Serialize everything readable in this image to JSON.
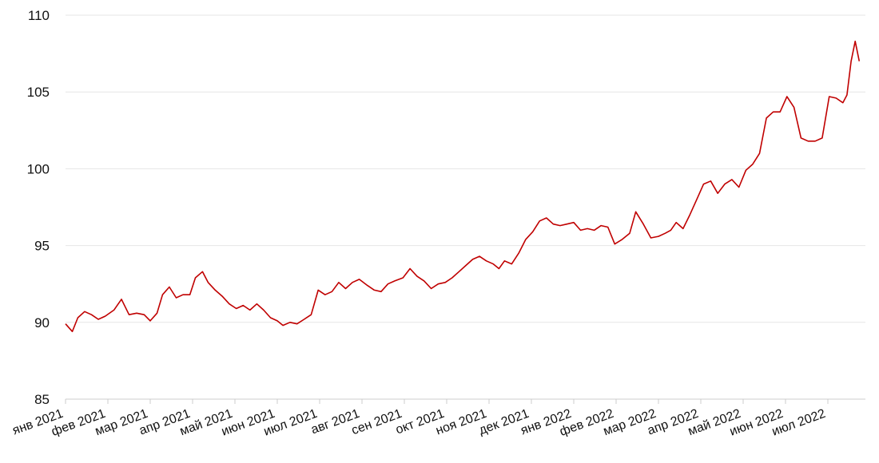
{
  "chart_data": {
    "type": "line",
    "title": "",
    "xlabel": "",
    "ylabel": "",
    "ylim": [
      85,
      110
    ],
    "y_ticks": [
      "85",
      "90",
      "95",
      "100",
      "105",
      "110"
    ],
    "x_ticks": [
      "янв 2021",
      "фев 2021",
      "мар 2021",
      "апр 2021",
      "май 2021",
      "июн 2021",
      "июл 2021",
      "авг 2021",
      "сен 2021",
      "окт 2021",
      "ноя 2021",
      "дек 2021",
      "янв 2022",
      "фев 2022",
      "мар 2022",
      "апр 2022",
      "май 2022",
      "июн 2022",
      "июл 2022"
    ],
    "grid": true,
    "line_color": "#c00000",
    "series": [
      {
        "x": [
          "2021-01-01",
          "2021-01-06",
          "2021-01-10",
          "2021-01-15",
          "2021-01-20",
          "2021-01-25",
          "2021-01-30",
          "2021-02-05",
          "2021-02-10",
          "2021-02-15",
          "2021-02-20",
          "2021-02-25",
          "2021-03-01",
          "2021-03-06",
          "2021-03-10",
          "2021-03-15",
          "2021-03-20",
          "2021-03-25",
          "2021-03-30",
          "2021-04-03",
          "2021-04-08",
          "2021-04-12",
          "2021-04-17",
          "2021-04-22",
          "2021-04-27",
          "2021-05-02",
          "2021-05-07",
          "2021-05-12",
          "2021-05-17",
          "2021-05-22",
          "2021-05-27",
          "2021-06-01",
          "2021-06-05",
          "2021-06-10",
          "2021-06-15",
          "2021-06-20",
          "2021-06-25",
          "2021-06-30",
          "2021-07-05",
          "2021-07-10",
          "2021-07-15",
          "2021-07-20",
          "2021-07-25",
          "2021-07-30",
          "2021-08-05",
          "2021-08-10",
          "2021-08-15",
          "2021-08-20",
          "2021-08-25",
          "2021-08-31",
          "2021-09-05",
          "2021-09-10",
          "2021-09-15",
          "2021-09-20",
          "2021-09-25",
          "2021-09-30",
          "2021-10-05",
          "2021-10-10",
          "2021-10-15",
          "2021-10-20",
          "2021-10-25",
          "2021-10-30",
          "2021-11-04",
          "2021-11-08",
          "2021-11-12",
          "2021-11-17",
          "2021-11-22",
          "2021-11-27",
          "2021-12-02",
          "2021-12-07",
          "2021-12-12",
          "2021-12-17",
          "2021-12-22",
          "2021-12-27",
          "2022-01-01",
          "2022-01-06",
          "2022-01-11",
          "2022-01-16",
          "2022-01-21",
          "2022-01-26",
          "2022-01-31",
          "2022-02-05",
          "2022-02-10",
          "2022-02-14",
          "2022-02-19",
          "2022-02-24",
          "2022-03-01",
          "2022-03-06",
          "2022-03-10",
          "2022-03-14",
          "2022-03-19",
          "2022-03-24",
          "2022-03-29",
          "2022-04-03",
          "2022-04-08",
          "2022-04-13",
          "2022-04-18",
          "2022-04-23",
          "2022-04-28",
          "2022-05-03",
          "2022-05-08",
          "2022-05-13",
          "2022-05-18",
          "2022-05-23",
          "2022-05-28",
          "2022-06-02",
          "2022-06-07",
          "2022-06-12",
          "2022-06-17",
          "2022-06-22",
          "2022-06-27",
          "2022-07-02",
          "2022-07-07",
          "2022-07-12",
          "2022-07-15",
          "2022-07-18",
          "2022-07-21",
          "2022-07-24"
        ],
        "values": [
          89.9,
          89.4,
          90.3,
          90.7,
          90.5,
          90.2,
          90.4,
          90.8,
          91.5,
          90.5,
          90.6,
          90.5,
          90.1,
          90.6,
          91.8,
          92.3,
          91.6,
          91.8,
          91.8,
          92.9,
          93.3,
          92.6,
          92.1,
          91.7,
          91.2,
          90.9,
          91.1,
          90.8,
          91.2,
          90.8,
          90.3,
          90.1,
          89.8,
          90.0,
          89.9,
          90.2,
          90.5,
          92.1,
          91.8,
          92.0,
          92.6,
          92.2,
          92.6,
          92.8,
          92.4,
          92.1,
          92.0,
          92.5,
          92.7,
          92.9,
          93.5,
          93.0,
          92.7,
          92.2,
          92.5,
          92.6,
          92.9,
          93.3,
          93.7,
          94.1,
          94.3,
          94.0,
          93.8,
          93.5,
          94.0,
          93.8,
          94.5,
          95.4,
          95.9,
          96.6,
          96.8,
          96.4,
          96.3,
          96.4,
          96.5,
          96.0,
          96.1,
          96.0,
          96.3,
          96.2,
          95.1,
          95.4,
          95.8,
          97.2,
          96.4,
          95.5,
          95.6,
          95.8,
          96.0,
          96.5,
          96.1,
          97.0,
          98.0,
          99.0,
          99.2,
          98.4,
          99.0,
          99.3,
          98.8,
          99.9,
          100.3,
          101.0,
          103.3,
          103.7,
          103.7,
          104.7,
          104.0,
          102.0,
          101.8,
          101.8,
          102.0,
          104.7,
          104.6,
          104.3,
          104.8,
          107.0,
          108.3,
          107.0
        ]
      }
    ]
  }
}
